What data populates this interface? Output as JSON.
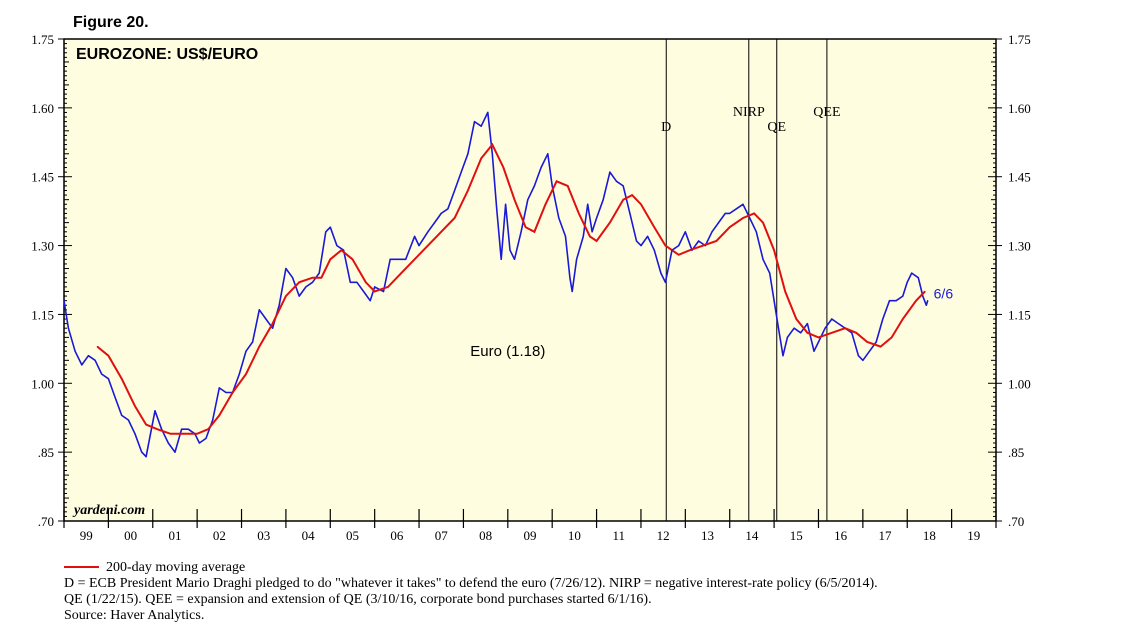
{
  "figure_label": "Figure 20.",
  "watermark": "yardeni.com",
  "chart_data": {
    "type": "line",
    "title": "EUROZONE: US$/EURO",
    "x_axis": {
      "range": [
        1999.0,
        2020.0
      ],
      "tick_labels": [
        {
          "label": "99",
          "year": 1999
        },
        {
          "label": "00",
          "year": 2000
        },
        {
          "label": "01",
          "year": 2001
        },
        {
          "label": "02",
          "year": 2002
        },
        {
          "label": "03",
          "year": 2003
        },
        {
          "label": "04",
          "year": 2004
        },
        {
          "label": "05",
          "year": 2005
        },
        {
          "label": "06",
          "year": 2006
        },
        {
          "label": "07",
          "year": 2007
        },
        {
          "label": "08",
          "year": 2008
        },
        {
          "label": "09",
          "year": 2009
        },
        {
          "label": "10",
          "year": 2010
        },
        {
          "label": "11",
          "year": 2011
        },
        {
          "label": "12",
          "year": 2012
        },
        {
          "label": "13",
          "year": 2013
        },
        {
          "label": "14",
          "year": 2014
        },
        {
          "label": "15",
          "year": 2015
        },
        {
          "label": "16",
          "year": 2016
        },
        {
          "label": "17",
          "year": 2017
        },
        {
          "label": "18",
          "year": 2018
        },
        {
          "label": "19",
          "year": 2019
        }
      ]
    },
    "y_axis": {
      "range": [
        0.7,
        1.75
      ],
      "ticks": [
        0.7,
        0.85,
        1.0,
        1.15,
        1.3,
        1.45,
        1.6,
        1.75
      ],
      "tick_labels": [
        ".70",
        ".85",
        "1.00",
        "1.15",
        "1.30",
        "1.45",
        "1.60",
        "1.75"
      ]
    },
    "grid": false,
    "background_color": "#fffde0",
    "series": [
      {
        "name": "Euro (1.18)",
        "color": "#1a1ad6",
        "end_label": "6/6",
        "points": [
          [
            1999.0,
            1.18
          ],
          [
            1999.1,
            1.12
          ],
          [
            1999.25,
            1.07
          ],
          [
            1999.4,
            1.04
          ],
          [
            1999.55,
            1.06
          ],
          [
            1999.7,
            1.05
          ],
          [
            1999.85,
            1.02
          ],
          [
            2000.0,
            1.01
          ],
          [
            2000.15,
            0.97
          ],
          [
            2000.3,
            0.93
          ],
          [
            2000.45,
            0.92
          ],
          [
            2000.6,
            0.89
          ],
          [
            2000.75,
            0.85
          ],
          [
            2000.85,
            0.84
          ],
          [
            2000.95,
            0.89
          ],
          [
            2001.05,
            0.94
          ],
          [
            2001.2,
            0.9
          ],
          [
            2001.35,
            0.87
          ],
          [
            2001.5,
            0.85
          ],
          [
            2001.65,
            0.9
          ],
          [
            2001.8,
            0.9
          ],
          [
            2001.95,
            0.89
          ],
          [
            2002.05,
            0.87
          ],
          [
            2002.2,
            0.88
          ],
          [
            2002.35,
            0.92
          ],
          [
            2002.5,
            0.99
          ],
          [
            2002.65,
            0.98
          ],
          [
            2002.8,
            0.98
          ],
          [
            2002.95,
            1.02
          ],
          [
            2003.1,
            1.07
          ],
          [
            2003.25,
            1.09
          ],
          [
            2003.4,
            1.16
          ],
          [
            2003.55,
            1.14
          ],
          [
            2003.7,
            1.12
          ],
          [
            2003.85,
            1.17
          ],
          [
            2004.0,
            1.25
          ],
          [
            2004.15,
            1.23
          ],
          [
            2004.3,
            1.19
          ],
          [
            2004.45,
            1.21
          ],
          [
            2004.6,
            1.22
          ],
          [
            2004.75,
            1.24
          ],
          [
            2004.9,
            1.33
          ],
          [
            2005.0,
            1.34
          ],
          [
            2005.15,
            1.3
          ],
          [
            2005.3,
            1.29
          ],
          [
            2005.45,
            1.22
          ],
          [
            2005.6,
            1.22
          ],
          [
            2005.75,
            1.2
          ],
          [
            2005.9,
            1.18
          ],
          [
            2006.0,
            1.21
          ],
          [
            2006.2,
            1.2
          ],
          [
            2006.35,
            1.27
          ],
          [
            2006.5,
            1.27
          ],
          [
            2006.7,
            1.27
          ],
          [
            2006.9,
            1.32
          ],
          [
            2007.0,
            1.3
          ],
          [
            2007.2,
            1.33
          ],
          [
            2007.35,
            1.35
          ],
          [
            2007.5,
            1.37
          ],
          [
            2007.65,
            1.38
          ],
          [
            2007.8,
            1.42
          ],
          [
            2007.95,
            1.46
          ],
          [
            2008.1,
            1.5
          ],
          [
            2008.25,
            1.57
          ],
          [
            2008.4,
            1.56
          ],
          [
            2008.55,
            1.59
          ],
          [
            2008.65,
            1.5
          ],
          [
            2008.75,
            1.38
          ],
          [
            2008.85,
            1.27
          ],
          [
            2008.95,
            1.39
          ],
          [
            2009.05,
            1.29
          ],
          [
            2009.15,
            1.27
          ],
          [
            2009.3,
            1.33
          ],
          [
            2009.45,
            1.4
          ],
          [
            2009.6,
            1.43
          ],
          [
            2009.75,
            1.47
          ],
          [
            2009.9,
            1.5
          ],
          [
            2010.0,
            1.43
          ],
          [
            2010.15,
            1.36
          ],
          [
            2010.3,
            1.32
          ],
          [
            2010.4,
            1.23
          ],
          [
            2010.45,
            1.2
          ],
          [
            2010.55,
            1.27
          ],
          [
            2010.7,
            1.32
          ],
          [
            2010.8,
            1.39
          ],
          [
            2010.9,
            1.33
          ],
          [
            2011.0,
            1.36
          ],
          [
            2011.15,
            1.4
          ],
          [
            2011.3,
            1.46
          ],
          [
            2011.45,
            1.44
          ],
          [
            2011.6,
            1.43
          ],
          [
            2011.75,
            1.37
          ],
          [
            2011.9,
            1.31
          ],
          [
            2012.0,
            1.3
          ],
          [
            2012.15,
            1.32
          ],
          [
            2012.3,
            1.29
          ],
          [
            2012.45,
            1.24
          ],
          [
            2012.55,
            1.22
          ],
          [
            2012.7,
            1.29
          ],
          [
            2012.85,
            1.3
          ],
          [
            2013.0,
            1.33
          ],
          [
            2013.15,
            1.29
          ],
          [
            2013.3,
            1.31
          ],
          [
            2013.45,
            1.3
          ],
          [
            2013.6,
            1.33
          ],
          [
            2013.75,
            1.35
          ],
          [
            2013.9,
            1.37
          ],
          [
            2014.0,
            1.37
          ],
          [
            2014.15,
            1.38
          ],
          [
            2014.3,
            1.39
          ],
          [
            2014.45,
            1.36
          ],
          [
            2014.6,
            1.33
          ],
          [
            2014.75,
            1.27
          ],
          [
            2014.9,
            1.24
          ],
          [
            2015.0,
            1.18
          ],
          [
            2015.1,
            1.12
          ],
          [
            2015.2,
            1.06
          ],
          [
            2015.3,
            1.1
          ],
          [
            2015.45,
            1.12
          ],
          [
            2015.6,
            1.11
          ],
          [
            2015.75,
            1.13
          ],
          [
            2015.9,
            1.07
          ],
          [
            2016.0,
            1.09
          ],
          [
            2016.15,
            1.12
          ],
          [
            2016.3,
            1.14
          ],
          [
            2016.45,
            1.13
          ],
          [
            2016.6,
            1.12
          ],
          [
            2016.75,
            1.11
          ],
          [
            2016.9,
            1.06
          ],
          [
            2017.0,
            1.05
          ],
          [
            2017.15,
            1.07
          ],
          [
            2017.3,
            1.09
          ],
          [
            2017.45,
            1.14
          ],
          [
            2017.6,
            1.18
          ],
          [
            2017.75,
            1.18
          ],
          [
            2017.9,
            1.19
          ],
          [
            2018.0,
            1.22
          ],
          [
            2018.1,
            1.24
          ],
          [
            2018.25,
            1.23
          ],
          [
            2018.35,
            1.19
          ],
          [
            2018.43,
            1.17
          ],
          [
            2018.46,
            1.18
          ]
        ]
      },
      {
        "name": "200-day moving average",
        "color": "#e01010",
        "points": [
          [
            1999.75,
            1.08
          ],
          [
            2000.0,
            1.06
          ],
          [
            2000.3,
            1.01
          ],
          [
            2000.6,
            0.95
          ],
          [
            2000.85,
            0.91
          ],
          [
            2001.1,
            0.9
          ],
          [
            2001.4,
            0.89
          ],
          [
            2001.7,
            0.89
          ],
          [
            2002.0,
            0.89
          ],
          [
            2002.25,
            0.9
          ],
          [
            2002.5,
            0.93
          ],
          [
            2002.8,
            0.98
          ],
          [
            2003.1,
            1.02
          ],
          [
            2003.4,
            1.08
          ],
          [
            2003.7,
            1.13
          ],
          [
            2004.0,
            1.19
          ],
          [
            2004.3,
            1.22
          ],
          [
            2004.6,
            1.23
          ],
          [
            2004.8,
            1.23
          ],
          [
            2005.0,
            1.27
          ],
          [
            2005.25,
            1.29
          ],
          [
            2005.5,
            1.27
          ],
          [
            2005.8,
            1.22
          ],
          [
            2006.0,
            1.2
          ],
          [
            2006.3,
            1.21
          ],
          [
            2006.6,
            1.24
          ],
          [
            2006.9,
            1.27
          ],
          [
            2007.2,
            1.3
          ],
          [
            2007.5,
            1.33
          ],
          [
            2007.8,
            1.36
          ],
          [
            2008.1,
            1.42
          ],
          [
            2008.4,
            1.49
          ],
          [
            2008.65,
            1.52
          ],
          [
            2008.9,
            1.47
          ],
          [
            2009.15,
            1.4
          ],
          [
            2009.4,
            1.34
          ],
          [
            2009.6,
            1.33
          ],
          [
            2009.85,
            1.39
          ],
          [
            2010.1,
            1.44
          ],
          [
            2010.35,
            1.43
          ],
          [
            2010.6,
            1.37
          ],
          [
            2010.85,
            1.32
          ],
          [
            2011.0,
            1.31
          ],
          [
            2011.3,
            1.35
          ],
          [
            2011.6,
            1.4
          ],
          [
            2011.8,
            1.41
          ],
          [
            2012.0,
            1.39
          ],
          [
            2012.3,
            1.34
          ],
          [
            2012.55,
            1.3
          ],
          [
            2012.85,
            1.28
          ],
          [
            2013.1,
            1.29
          ],
          [
            2013.4,
            1.3
          ],
          [
            2013.7,
            1.31
          ],
          [
            2014.0,
            1.34
          ],
          [
            2014.3,
            1.36
          ],
          [
            2014.55,
            1.37
          ],
          [
            2014.75,
            1.35
          ],
          [
            2015.0,
            1.29
          ],
          [
            2015.25,
            1.2
          ],
          [
            2015.5,
            1.14
          ],
          [
            2015.75,
            1.11
          ],
          [
            2016.0,
            1.1
          ],
          [
            2016.3,
            1.11
          ],
          [
            2016.6,
            1.12
          ],
          [
            2016.85,
            1.11
          ],
          [
            2017.1,
            1.09
          ],
          [
            2017.4,
            1.08
          ],
          [
            2017.65,
            1.1
          ],
          [
            2017.9,
            1.14
          ],
          [
            2018.2,
            1.18
          ],
          [
            2018.4,
            1.2
          ]
        ]
      }
    ],
    "event_lines": [
      {
        "label": "D",
        "year": 2012.57
      },
      {
        "label": "NIRP",
        "year": 2014.43
      },
      {
        "label": "QE",
        "year": 2015.06
      },
      {
        "label": "QEE",
        "year": 2016.19
      }
    ],
    "annotations": [
      {
        "text": "Euro (1.18)",
        "x": 2009.0,
        "y": 1.07,
        "color": "#000000"
      }
    ]
  },
  "footer": {
    "legend_label": "200-day moving average",
    "note_1": "D = ECB President Mario Draghi pledged to do \"whatever it takes\" to defend the euro (7/26/12). NIRP = negative interest-rate policy (6/5/2014).",
    "note_2": "QE (1/22/15). QEE = expansion and extension of QE (3/10/16, corporate bond purchases started 6/1/16).",
    "source": "Source: Haver Analytics."
  }
}
